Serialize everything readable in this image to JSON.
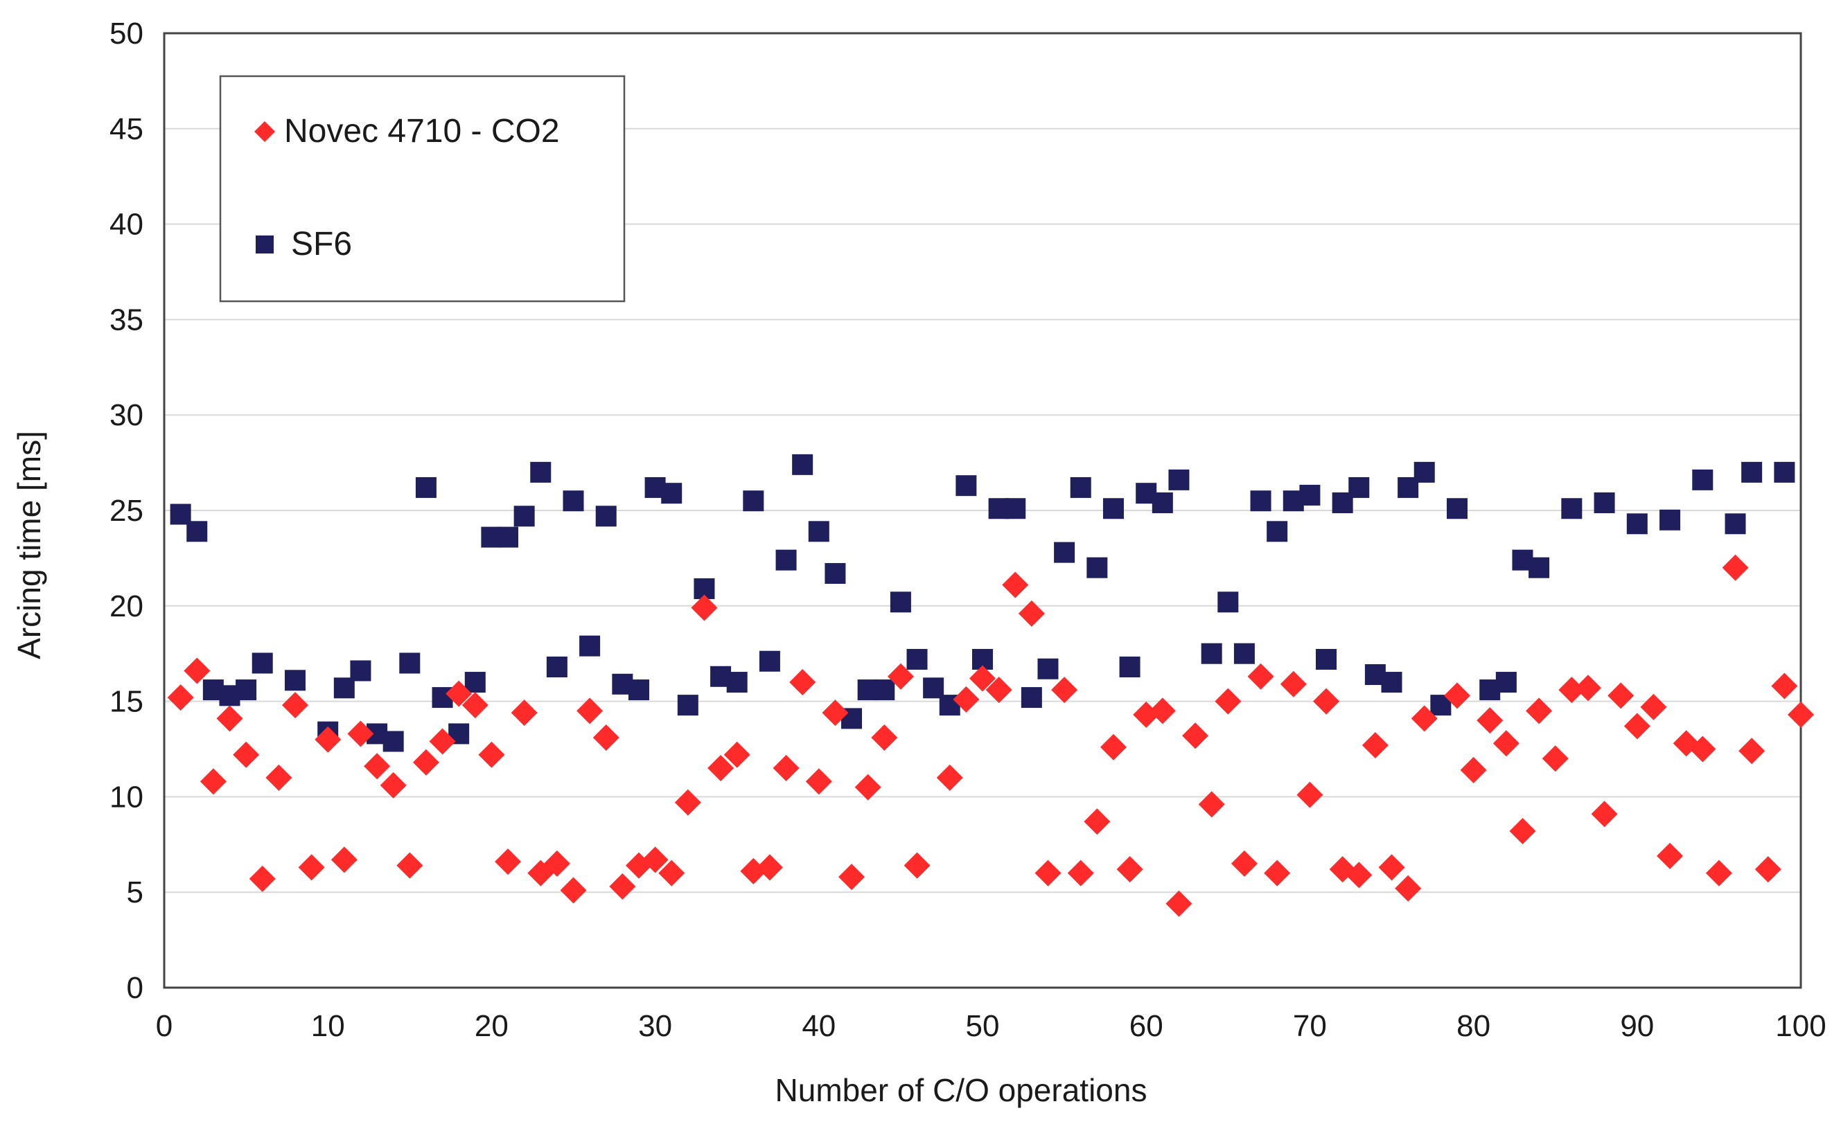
{
  "chart_data": {
    "type": "scatter",
    "title": "",
    "xlabel": "Number of C/O operations",
    "ylabel": "Arcing time [ms]",
    "xlim": [
      0,
      100
    ],
    "ylim": [
      0,
      50
    ],
    "xticks": [
      0,
      10,
      20,
      30,
      40,
      50,
      60,
      70,
      80,
      90,
      100
    ],
    "yticks": [
      0,
      5,
      10,
      15,
      20,
      25,
      30,
      35,
      40,
      45,
      50
    ],
    "grid": "horizontal",
    "legend_position": "top-left",
    "series": [
      {
        "name": "Novec 4710 - CO2",
        "marker": "diamond",
        "color": "#ff2a2a",
        "points": [
          [
            1,
            15.2
          ],
          [
            2,
            16.6
          ],
          [
            3,
            10.8
          ],
          [
            4,
            14.1
          ],
          [
            5,
            12.2
          ],
          [
            6,
            5.7
          ],
          [
            7,
            11.0
          ],
          [
            8,
            14.8
          ],
          [
            9,
            6.3
          ],
          [
            10,
            13.0
          ],
          [
            11,
            6.7
          ],
          [
            12,
            13.3
          ],
          [
            13,
            11.6
          ],
          [
            14,
            10.6
          ],
          [
            15,
            6.4
          ],
          [
            16,
            11.8
          ],
          [
            17,
            12.9
          ],
          [
            18,
            15.4
          ],
          [
            19,
            14.8
          ],
          [
            20,
            12.2
          ],
          [
            21,
            6.6
          ],
          [
            22,
            14.4
          ],
          [
            23,
            6.0
          ],
          [
            24,
            6.5
          ],
          [
            25,
            5.1
          ],
          [
            26,
            14.5
          ],
          [
            27,
            13.1
          ],
          [
            28,
            5.3
          ],
          [
            29,
            6.4
          ],
          [
            30,
            6.7
          ],
          [
            31,
            6.0
          ],
          [
            32,
            9.7
          ],
          [
            33,
            19.9
          ],
          [
            34,
            11.5
          ],
          [
            35,
            12.2
          ],
          [
            36,
            6.1
          ],
          [
            37,
            6.3
          ],
          [
            38,
            11.5
          ],
          [
            39,
            16.0
          ],
          [
            40,
            10.8
          ],
          [
            41,
            14.4
          ],
          [
            42,
            5.8
          ],
          [
            43,
            10.5
          ],
          [
            44,
            13.1
          ],
          [
            45,
            16.3
          ],
          [
            46,
            6.4
          ],
          [
            48,
            11.0
          ],
          [
            49,
            15.1
          ],
          [
            50,
            16.2
          ],
          [
            51,
            15.6
          ],
          [
            52,
            21.1
          ],
          [
            53,
            19.6
          ],
          [
            54,
            6.0
          ],
          [
            55,
            15.6
          ],
          [
            56,
            6.0
          ],
          [
            57,
            8.7
          ],
          [
            58,
            12.6
          ],
          [
            59,
            6.2
          ],
          [
            60,
            14.3
          ],
          [
            61,
            14.5
          ],
          [
            62,
            4.4
          ],
          [
            63,
            13.2
          ],
          [
            64,
            9.6
          ],
          [
            65,
            15.0
          ],
          [
            66,
            6.5
          ],
          [
            67,
            16.3
          ],
          [
            68,
            6.0
          ],
          [
            69,
            15.9
          ],
          [
            70,
            10.1
          ],
          [
            71,
            15.0
          ],
          [
            72,
            6.2
          ],
          [
            73,
            5.9
          ],
          [
            74,
            12.7
          ],
          [
            75,
            6.3
          ],
          [
            76,
            5.2
          ],
          [
            77,
            14.1
          ],
          [
            79,
            15.3
          ],
          [
            80,
            11.4
          ],
          [
            81,
            14.0
          ],
          [
            82,
            12.8
          ],
          [
            83,
            8.2
          ],
          [
            84,
            14.5
          ],
          [
            85,
            12.0
          ],
          [
            86,
            15.6
          ],
          [
            87,
            15.7
          ],
          [
            88,
            9.1
          ],
          [
            89,
            15.3
          ],
          [
            90,
            13.7
          ],
          [
            91,
            14.7
          ],
          [
            92,
            6.9
          ],
          [
            93,
            12.8
          ],
          [
            94,
            12.5
          ],
          [
            95,
            6.0
          ],
          [
            96,
            22.0
          ],
          [
            97,
            12.4
          ],
          [
            98,
            6.2
          ],
          [
            99,
            15.8
          ],
          [
            100,
            14.3
          ]
        ]
      },
      {
        "name": "SF6",
        "marker": "square",
        "color": "#1f1f5e",
        "points": [
          [
            1,
            24.8
          ],
          [
            2,
            23.9
          ],
          [
            3,
            15.6
          ],
          [
            4,
            15.3
          ],
          [
            5,
            15.6
          ],
          [
            6,
            17.0
          ],
          [
            8,
            16.1
          ],
          [
            10,
            13.4
          ],
          [
            11,
            15.7
          ],
          [
            12,
            16.6
          ],
          [
            13,
            13.3
          ],
          [
            14,
            12.9
          ],
          [
            15,
            17.0
          ],
          [
            16,
            26.2
          ],
          [
            17,
            15.2
          ],
          [
            18,
            13.3
          ],
          [
            19,
            16.0
          ],
          [
            20,
            23.6
          ],
          [
            21,
            23.6
          ],
          [
            22,
            24.7
          ],
          [
            23,
            27.0
          ],
          [
            24,
            16.8
          ],
          [
            25,
            25.5
          ],
          [
            26,
            17.9
          ],
          [
            27,
            24.7
          ],
          [
            28,
            15.9
          ],
          [
            29,
            15.6
          ],
          [
            30,
            26.2
          ],
          [
            31,
            25.9
          ],
          [
            32,
            14.8
          ],
          [
            33,
            20.9
          ],
          [
            34,
            16.3
          ],
          [
            35,
            16.0
          ],
          [
            36,
            25.5
          ],
          [
            37,
            17.1
          ],
          [
            38,
            22.4
          ],
          [
            39,
            27.4
          ],
          [
            40,
            23.9
          ],
          [
            41,
            21.7
          ],
          [
            42,
            14.1
          ],
          [
            43,
            15.6
          ],
          [
            44,
            15.6
          ],
          [
            45,
            20.2
          ],
          [
            46,
            17.2
          ],
          [
            47,
            15.7
          ],
          [
            48,
            14.8
          ],
          [
            49,
            26.3
          ],
          [
            50,
            17.2
          ],
          [
            51,
            25.1
          ],
          [
            52,
            25.1
          ],
          [
            53,
            15.2
          ],
          [
            54,
            16.7
          ],
          [
            55,
            22.8
          ],
          [
            56,
            26.2
          ],
          [
            57,
            22.0
          ],
          [
            58,
            25.1
          ],
          [
            59,
            16.8
          ],
          [
            60,
            25.9
          ],
          [
            61,
            25.4
          ],
          [
            62,
            26.6
          ],
          [
            64,
            17.5
          ],
          [
            65,
            20.2
          ],
          [
            66,
            17.5
          ],
          [
            67,
            25.5
          ],
          [
            68,
            23.9
          ],
          [
            69,
            25.5
          ],
          [
            70,
            25.8
          ],
          [
            71,
            17.2
          ],
          [
            72,
            25.4
          ],
          [
            73,
            26.2
          ],
          [
            74,
            16.4
          ],
          [
            75,
            16.0
          ],
          [
            76,
            26.2
          ],
          [
            77,
            27.0
          ],
          [
            78,
            14.8
          ],
          [
            79,
            25.1
          ],
          [
            81,
            15.6
          ],
          [
            82,
            16.0
          ],
          [
            83,
            22.4
          ],
          [
            84,
            22.0
          ],
          [
            86,
            25.1
          ],
          [
            88,
            25.4
          ],
          [
            90,
            24.3
          ],
          [
            92,
            24.5
          ],
          [
            94,
            26.6
          ],
          [
            96,
            24.3
          ],
          [
            97,
            27.0
          ],
          [
            99,
            27.0
          ]
        ]
      }
    ]
  }
}
